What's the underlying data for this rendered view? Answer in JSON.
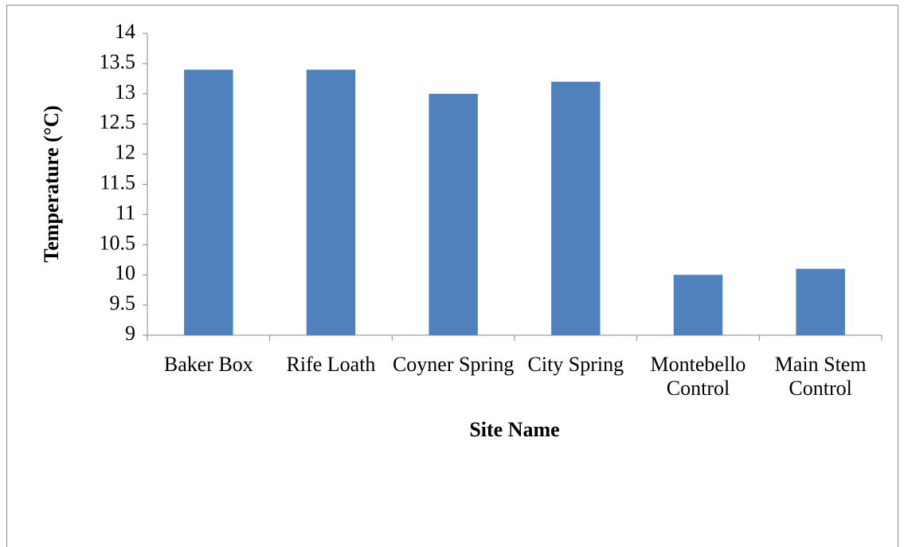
{
  "chart_data": {
    "type": "bar",
    "x_label": "Site Name",
    "y_label": "Temperature (°C)",
    "categories": [
      "Baker Box",
      "Rife Loath",
      "Coyner Spring",
      "City Spring",
      "Montebello Control",
      "Main Stem Control"
    ],
    "values": [
      13.4,
      13.4,
      13,
      13.2,
      10,
      10.1
    ],
    "color": "#4f81bd",
    "ylim": [
      9,
      14
    ],
    "yticks": [
      9,
      9.5,
      10,
      10.5,
      11,
      11.5,
      12,
      12.5,
      13,
      13.5,
      14
    ],
    "grid": false
  }
}
